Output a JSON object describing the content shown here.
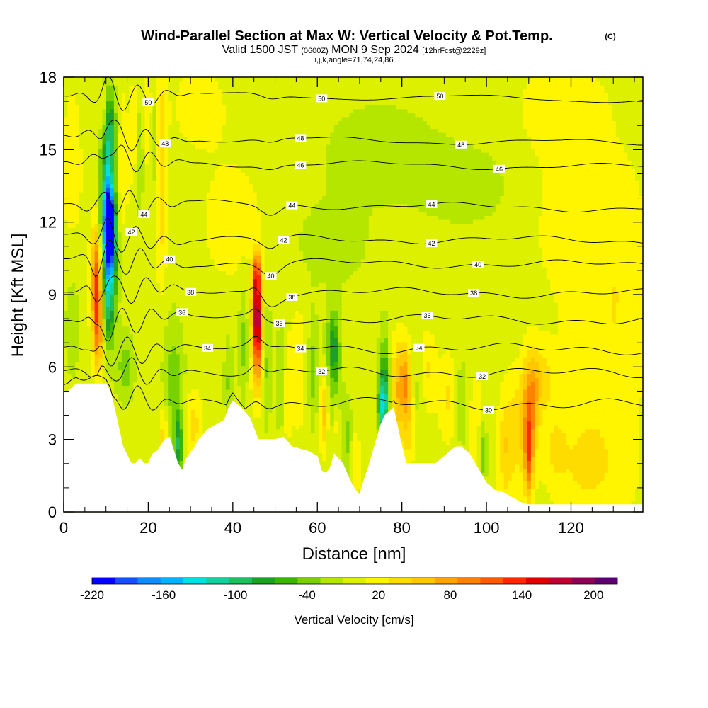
{
  "chart_data": {
    "type": "heatmap",
    "title": "Wind-Parallel Section at Max W: Vertical Velocity & Pot.Temp.",
    "title_mark": "(C)",
    "subtitle_parts": [
      "Valid 1500 JST",
      "(0600Z)",
      "MON 9 Sep 2024",
      "[12hrFcst@2229z]"
    ],
    "subtitle2": "i,j,k,angle=71,74,24,86",
    "xlabel": "Distance [nm]",
    "ylabel": "Height [Kft MSL]",
    "xlim": [
      0,
      137
    ],
    "ylim": [
      0,
      18
    ],
    "x_ticks": [
      "0",
      "20",
      "40",
      "60",
      "80",
      "100",
      "120"
    ],
    "y_ticks": [
      "0",
      "3",
      "6",
      "9",
      "12",
      "15",
      "18"
    ],
    "grid": false,
    "colorbar": {
      "title": "Vertical Velocity [cm/s]",
      "min": -220,
      "max": 220,
      "step": 20,
      "tick_labels": [
        "-220",
        "-160",
        "-100",
        "-40",
        "20",
        "80",
        "140",
        "200"
      ],
      "colors": [
        "#0000ff",
        "#1a4dff",
        "#0d8cff",
        "#00b4ff",
        "#00e0e0",
        "#10d2a0",
        "#1ebe5a",
        "#1ea028",
        "#3cb400",
        "#78d200",
        "#b4e600",
        "#dcf000",
        "#fff500",
        "#ffdc00",
        "#ffc800",
        "#ffa500",
        "#ff8200",
        "#ff5a00",
        "#ff2800",
        "#dc0000",
        "#be0032",
        "#8c005a",
        "#5a006e"
      ],
      "location": "bottom"
    },
    "background_value_cm_s": 10,
    "terrain": {
      "x": [
        0,
        1,
        3,
        7,
        8,
        10,
        11,
        12,
        13,
        14,
        16,
        17,
        18,
        19,
        20,
        21,
        22,
        24,
        25,
        27,
        28,
        29,
        31,
        32,
        34,
        36,
        38,
        39,
        40,
        42,
        44,
        46,
        48,
        50,
        52,
        54,
        56,
        58,
        60,
        61,
        62,
        63,
        64,
        66,
        67,
        68,
        69,
        70,
        71,
        72,
        73,
        74,
        75,
        76,
        78,
        79,
        80,
        81,
        82,
        83,
        84,
        86,
        88,
        90,
        92,
        93,
        94,
        96,
        98,
        100,
        102,
        104,
        106,
        108,
        110,
        112,
        114,
        116,
        118,
        120,
        122,
        124,
        126,
        128,
        130,
        132,
        134,
        137
      ],
      "height_kft": [
        5.0,
        5.0,
        5.3,
        5.3,
        5.3,
        5.3,
        5.0,
        4.3,
        3.5,
        2.7,
        2.0,
        2.0,
        2.2,
        2.0,
        2.0,
        2.4,
        2.5,
        3.0,
        3.1,
        2.0,
        1.7,
        2.2,
        2.7,
        3.0,
        3.4,
        3.6,
        3.8,
        4.3,
        4.6,
        4.3,
        3.9,
        3.0,
        3.0,
        3.0,
        3.1,
        2.7,
        2.6,
        2.5,
        2.3,
        1.7,
        1.6,
        1.8,
        2.4,
        2.0,
        1.6,
        1.2,
        0.9,
        0.7,
        1.3,
        1.8,
        2.4,
        3.0,
        3.6,
        4.0,
        4.3,
        3.5,
        2.7,
        2.0,
        2.0,
        2.0,
        2.0,
        2.0,
        2.0,
        2.3,
        2.6,
        2.7,
        2.7,
        2.4,
        1.8,
        1.2,
        0.9,
        0.8,
        0.6,
        0.4,
        0.3,
        0.3,
        0.3,
        0.3,
        0.3,
        0.3,
        0.3,
        0.3,
        0.3,
        0.3,
        0.3,
        0.3,
        0.3,
        0.3
      ]
    },
    "velocity_cells": [
      {
        "x": 7.8,
        "z": 9.4,
        "sx": 0.9,
        "sz": 1.7,
        "w": 140
      },
      {
        "x": 8.2,
        "z": 7.2,
        "sx": 0.7,
        "sz": 1.1,
        "w": 60
      },
      {
        "x": 10.8,
        "z": 11.8,
        "sx": 0.9,
        "sz": 1.1,
        "w": -200
      },
      {
        "x": 10.3,
        "z": 12.7,
        "sx": 1.2,
        "sz": 2.8,
        "w": -110
      },
      {
        "x": 11.3,
        "z": 10.3,
        "sx": 1.0,
        "sz": 1.9,
        "w": -70
      },
      {
        "x": 11.2,
        "z": 15.8,
        "sx": 1.0,
        "sz": 1.1,
        "w": -60
      },
      {
        "x": 10.6,
        "z": 8.3,
        "sx": 0.8,
        "sz": 1.0,
        "w": -40
      },
      {
        "x": 9.5,
        "z": 16.5,
        "sx": 0.7,
        "sz": 0.8,
        "w": 40
      },
      {
        "x": 13.8,
        "z": 14.5,
        "sx": 1.1,
        "sz": 2.0,
        "w": 30
      },
      {
        "x": 14.5,
        "z": 6.0,
        "sx": 1.5,
        "sz": 1.0,
        "w": -40
      },
      {
        "x": 16.5,
        "z": 15.8,
        "sx": 0.6,
        "sz": 1.5,
        "w": 30
      },
      {
        "x": 18.0,
        "z": 14.5,
        "sx": 0.6,
        "sz": 1.5,
        "w": -30
      },
      {
        "x": 19.8,
        "z": 16.5,
        "sx": 0.6,
        "sz": 1.5,
        "w": 30
      },
      {
        "x": 21.6,
        "z": 15.3,
        "sx": 0.6,
        "sz": 1.5,
        "w": -30
      },
      {
        "x": 23.2,
        "z": 14.0,
        "sx": 0.9,
        "sz": 3.0,
        "w": 50
      },
      {
        "x": 26.0,
        "z": 5.3,
        "sx": 1.8,
        "sz": 2.0,
        "w": -40
      },
      {
        "x": 27.2,
        "z": 2.8,
        "sx": 0.8,
        "sz": 0.9,
        "w": -80
      },
      {
        "x": 23.7,
        "z": 3.0,
        "sx": 0.8,
        "sz": 1.0,
        "w": 50
      },
      {
        "x": 30.5,
        "z": 3.6,
        "sx": 1.6,
        "sz": 1.0,
        "w": 40
      },
      {
        "x": 45.6,
        "z": 8.5,
        "sx": 0.8,
        "sz": 1.2,
        "w": 150
      },
      {
        "x": 45.8,
        "z": 6.8,
        "sx": 0.9,
        "sz": 1.4,
        "w": 100
      },
      {
        "x": 45.6,
        "z": 10.0,
        "sx": 0.7,
        "sz": 0.6,
        "w": 70
      },
      {
        "x": 42.5,
        "z": 7.0,
        "sx": 0.8,
        "sz": 1.6,
        "w": -35
      },
      {
        "x": 39.0,
        "z": 5.3,
        "sx": 0.8,
        "sz": 1.4,
        "w": -30
      },
      {
        "x": 48.0,
        "z": 6.2,
        "sx": 0.8,
        "sz": 1.8,
        "w": -35
      },
      {
        "x": 51.5,
        "z": 5.5,
        "sx": 0.8,
        "sz": 1.6,
        "w": -40
      },
      {
        "x": 52.5,
        "z": 5.0,
        "sx": 0.8,
        "sz": 1.6,
        "w": 30
      },
      {
        "x": 55.5,
        "z": 6.0,
        "sx": 1.5,
        "sz": 2.0,
        "w": 25
      },
      {
        "x": 59.0,
        "z": 5.8,
        "sx": 0.9,
        "sz": 1.5,
        "w": -40
      },
      {
        "x": 61.5,
        "z": 4.0,
        "sx": 0.7,
        "sz": 1.0,
        "w": 60
      },
      {
        "x": 63.5,
        "z": 7.0,
        "sx": 1.0,
        "sz": 0.9,
        "w": -60
      },
      {
        "x": 64.2,
        "z": 5.5,
        "sx": 1.0,
        "sz": 1.7,
        "w": -45
      },
      {
        "x": 64.5,
        "z": 3.8,
        "sx": 0.6,
        "sz": 0.8,
        "w": 40
      },
      {
        "x": 67.0,
        "z": 3.0,
        "sx": 0.9,
        "sz": 1.2,
        "w": -35
      },
      {
        "x": 69.0,
        "z": 2.0,
        "sx": 0.8,
        "sz": 1.0,
        "w": 30
      },
      {
        "x": 76.0,
        "z": 5.2,
        "sx": 1.0,
        "sz": 1.6,
        "w": -70
      },
      {
        "x": 75.5,
        "z": 4.4,
        "sx": 0.8,
        "sz": 0.8,
        "w": -90
      },
      {
        "x": 78.8,
        "z": 5.0,
        "sx": 1.2,
        "sz": 1.5,
        "w": 70
      },
      {
        "x": 80.8,
        "z": 5.6,
        "sx": 0.8,
        "sz": 1.0,
        "w": 60
      },
      {
        "x": 81.5,
        "z": 4.0,
        "sx": 1.0,
        "sz": 1.5,
        "w": 50
      },
      {
        "x": 84.0,
        "z": 5.0,
        "sx": 1.5,
        "sz": 1.2,
        "w": -25
      },
      {
        "x": 86.0,
        "z": 5.7,
        "sx": 1.5,
        "sz": 1.2,
        "w": 40
      },
      {
        "x": 91.0,
        "z": 4.7,
        "sx": 1.5,
        "sz": 1.3,
        "w": 35
      },
      {
        "x": 94.0,
        "z": 4.5,
        "sx": 1.2,
        "sz": 1.4,
        "w": -25
      },
      {
        "x": 97.5,
        "z": 3.5,
        "sx": 1.2,
        "sz": 1.5,
        "w": 30
      },
      {
        "x": 99.0,
        "z": 2.5,
        "sx": 0.7,
        "sz": 1.0,
        "w": -50
      },
      {
        "x": 104.5,
        "z": 2.5,
        "sx": 1.3,
        "sz": 1.6,
        "w": 40
      },
      {
        "x": 108.5,
        "z": 3.5,
        "sx": 2.5,
        "sz": 1.6,
        "w": 50
      },
      {
        "x": 110.0,
        "z": 2.3,
        "sx": 0.7,
        "sz": 1.2,
        "w": 100
      },
      {
        "x": 110.5,
        "z": 4.8,
        "sx": 1.2,
        "sz": 1.3,
        "w": 60
      },
      {
        "x": 113.0,
        "z": 5.5,
        "sx": 2.0,
        "sz": 1.0,
        "w": 40
      },
      {
        "x": 116.5,
        "z": 2.5,
        "sx": 2.0,
        "sz": 1.2,
        "w": 30
      },
      {
        "x": 123.0,
        "z": 1.8,
        "sx": 3.0,
        "sz": 1.0,
        "w": 25
      },
      {
        "x": 131.0,
        "z": 1.5,
        "sx": 4.0,
        "sz": 1.3,
        "w": 15
      },
      {
        "x": 125.0,
        "z": 4.5,
        "sx": 6.0,
        "sz": 3.0,
        "w": 25
      },
      {
        "x": 132.0,
        "z": 9.5,
        "sx": 5.0,
        "sz": 3.5,
        "w": 25
      },
      {
        "x": 120.0,
        "z": 12.0,
        "sx": 7.0,
        "sz": 2.5,
        "w": 20
      },
      {
        "x": 95.0,
        "z": 13.5,
        "sx": 8.0,
        "sz": 1.2,
        "w": -20
      },
      {
        "x": 75.0,
        "z": 15.0,
        "sx": 10.0,
        "sz": 1.5,
        "w": -20
      },
      {
        "x": 118.0,
        "z": 16.8,
        "sx": 7.0,
        "sz": 1.5,
        "w": 25
      },
      {
        "x": 40.0,
        "z": 12.0,
        "sx": 6.0,
        "sz": 2.0,
        "w": 20
      },
      {
        "x": 63.0,
        "z": 11.0,
        "sx": 8.0,
        "sz": 1.5,
        "w": -15
      },
      {
        "x": 32.0,
        "z": 16.8,
        "sx": 5.0,
        "sz": 1.3,
        "w": 20
      },
      {
        "x": 2.0,
        "z": 14.0,
        "sx": 2.0,
        "sz": 3.0,
        "w": 20
      },
      {
        "x": 2.0,
        "z": 8.0,
        "sx": 1.5,
        "sz": 2.0,
        "w": -20
      }
    ],
    "theta_contours": [
      {
        "label": "30",
        "base_kft": 4.5,
        "label_x": 100.5
      },
      {
        "label": "32",
        "base_kft": 5.8,
        "label_x": 61
      },
      {
        "label": "32",
        "base_kft": 5.8,
        "label_x": 99,
        "label_only": true
      },
      {
        "label": "34",
        "base_kft": 6.8,
        "label_x": 34
      },
      {
        "label": "34",
        "base_kft": 6.8,
        "label_x": 56,
        "label_only": true
      },
      {
        "label": "34",
        "base_kft": 6.8,
        "label_x": 84,
        "label_only": true
      },
      {
        "label": "36",
        "base_kft": 8.0,
        "label_x": 28
      },
      {
        "label": "36",
        "base_kft": 8.0,
        "label_x": 51,
        "label_only": true
      },
      {
        "label": "36",
        "base_kft": 8.0,
        "label_x": 86,
        "label_only": true
      },
      {
        "label": "38",
        "base_kft": 9.1,
        "label_x": 30
      },
      {
        "label": "38",
        "base_kft": 9.1,
        "label_x": 54,
        "label_only": true
      },
      {
        "label": "38",
        "base_kft": 9.1,
        "label_x": 97,
        "label_only": true
      },
      {
        "label": "40",
        "base_kft": 10.3,
        "label_x": 25
      },
      {
        "label": "40",
        "base_kft": 10.3,
        "label_x": 49,
        "label_only": true
      },
      {
        "label": "40",
        "base_kft": 10.3,
        "label_x": 98,
        "label_only": true
      },
      {
        "label": "42",
        "base_kft": 11.3,
        "label_x": 16
      },
      {
        "label": "42",
        "base_kft": 11.3,
        "label_x": 52,
        "label_only": true
      },
      {
        "label": "42",
        "base_kft": 11.3,
        "label_x": 87,
        "label_only": true
      },
      {
        "label": "44",
        "base_kft": 12.7,
        "label_x": 19
      },
      {
        "label": "44",
        "base_kft": 12.7,
        "label_x": 54,
        "label_only": true
      },
      {
        "label": "44",
        "base_kft": 12.7,
        "label_x": 87,
        "label_only": true
      },
      {
        "label": "46",
        "base_kft": 14.4,
        "label_x": 56
      },
      {
        "label": "46",
        "base_kft": 14.4,
        "label_x": 103,
        "label_only": true
      },
      {
        "label": "48",
        "base_kft": 15.4,
        "label_x": 24
      },
      {
        "label": "48",
        "base_kft": 15.4,
        "label_x": 56,
        "label_only": true
      },
      {
        "label": "48",
        "base_kft": 15.4,
        "label_x": 94,
        "label_only": true
      },
      {
        "label": "50",
        "base_kft": 17.2,
        "label_x": 20
      },
      {
        "label": "50",
        "base_kft": 17.2,
        "label_x": 61,
        "label_only": true
      },
      {
        "label": "50",
        "base_kft": 17.2,
        "label_x": 89,
        "label_only": true
      }
    ]
  }
}
